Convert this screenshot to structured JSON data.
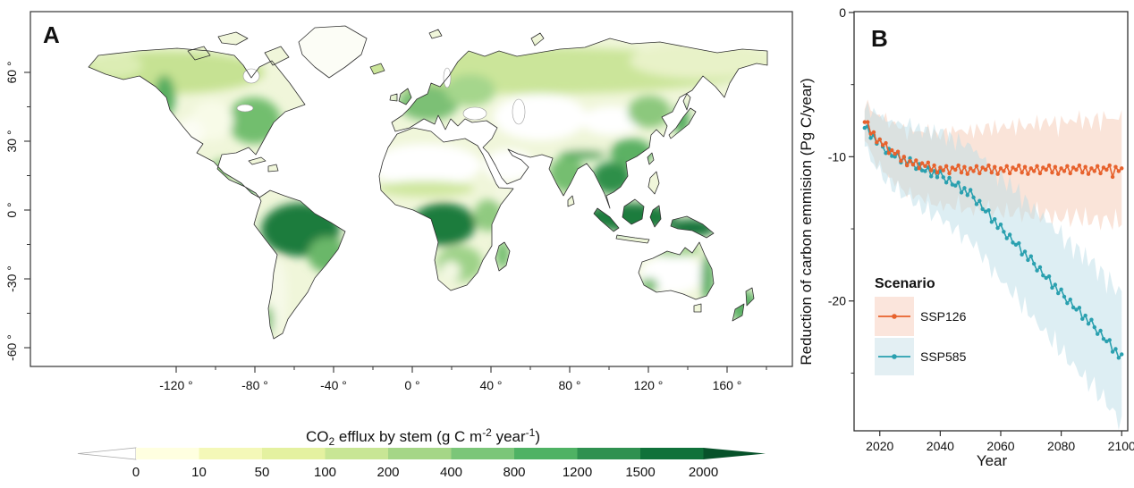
{
  "panels": {
    "a_label": "A",
    "b_label": "B"
  },
  "map": {
    "x_ticks": [
      {
        "lon": -120,
        "label": "-120 °"
      },
      {
        "lon": -80,
        "label": "-80 °"
      },
      {
        "lon": -40,
        "label": "-40 °"
      },
      {
        "lon": 0,
        "label": "0 °"
      },
      {
        "lon": 40,
        "label": "40 °"
      },
      {
        "lon": 80,
        "label": "80 °"
      },
      {
        "lon": 120,
        "label": "120 °"
      },
      {
        "lon": 160,
        "label": "160 °"
      }
    ],
    "x_minor_lons": [
      -100,
      -60,
      -20,
      20,
      60,
      100,
      140,
      180
    ],
    "y_ticks": [
      {
        "lat": 60,
        "label": "60 °"
      },
      {
        "lat": 30,
        "label": "30 °"
      },
      {
        "lat": 0,
        "label": "0 °"
      },
      {
        "lat": -30,
        "label": "-30 °"
      },
      {
        "lat": -60,
        "label": "-60 °"
      }
    ],
    "y_minor_lats": [
      45,
      15,
      -15,
      -45
    ]
  },
  "colorbar": {
    "title_parts": {
      "t1": "CO",
      "sub": "2",
      "t2": " efflux by stem (g C m",
      "sup1": "-2",
      "t3": " year",
      "sup2": "-1",
      "t4": ")"
    },
    "tick_labels": [
      "0",
      "10",
      "50",
      "100",
      "200",
      "400",
      "800",
      "1200",
      "1500",
      "2000"
    ],
    "segment_colors": [
      "#ffffe0",
      "#f4f8b8",
      "#e4f1a0",
      "#c8e695",
      "#a5d687",
      "#7bc679",
      "#4fb264",
      "#2f9150",
      "#10713a"
    ],
    "left_arrow_color": "#ffffff",
    "right_arrow_color": "#07522a"
  },
  "chart_data": {
    "type": "line",
    "title": "",
    "xlabel": "Year",
    "ylabel": "Reduction of carbon emmision (Pg C/year)",
    "x_ticks": [
      2020,
      2040,
      2060,
      2080,
      2100
    ],
    "y_ticks": [
      0,
      -10,
      -20
    ],
    "y_minor_ticks": [
      -5,
      -15,
      -25
    ],
    "xlim": [
      2011.5,
      2102
    ],
    "ylim": [
      -29,
      0.06
    ],
    "grid": false,
    "legend": {
      "title": "Scenario",
      "position": "inside-left-bottom"
    },
    "years_start": 2015,
    "years_end": 2100,
    "series": [
      {
        "name": "SSP126",
        "color": "#e7622d",
        "band_color": "#f6c9b4",
        "band_swatch": "#fbe5dc",
        "band_halfwidth_start": 1.1,
        "band_halfwidth_end": 3.4,
        "values": [
          -7.6,
          -7.6,
          -8.4,
          -8.3,
          -9.0,
          -8.8,
          -9.2,
          -9.05,
          -9.75,
          -9.55,
          -9.8,
          -9.65,
          -10.3,
          -10.0,
          -10.6,
          -10.3,
          -10.55,
          -10.25,
          -10.8,
          -10.45,
          -10.65,
          -10.4,
          -10.95,
          -10.6,
          -11.1,
          -10.75,
          -10.95,
          -10.65,
          -11.15,
          -10.75,
          -10.9,
          -10.6,
          -11.1,
          -10.7,
          -11.2,
          -10.8,
          -11.0,
          -10.65,
          -11.15,
          -10.75,
          -10.9,
          -10.6,
          -11.1,
          -10.7,
          -11.2,
          -10.8,
          -11.0,
          -10.65,
          -11.15,
          -10.75,
          -10.9,
          -10.6,
          -11.1,
          -10.7,
          -11.2,
          -10.8,
          -11.0,
          -10.65,
          -11.15,
          -10.75,
          -10.9,
          -10.6,
          -11.1,
          -10.7,
          -11.2,
          -10.8,
          -11.0,
          -10.65,
          -11.15,
          -10.75,
          -10.9,
          -10.6,
          -11.1,
          -10.7,
          -11.2,
          -10.8,
          -11.0,
          -10.65,
          -11.15,
          -10.75,
          -10.9,
          -10.6,
          -11.4,
          -10.7,
          -11.0,
          -10.8
        ]
      },
      {
        "name": "SSP585",
        "color": "#2aa0af",
        "band_color": "#bcdde7",
        "band_swatch": "#e3eff3",
        "band_halfwidth_start": 1.1,
        "band_halfwidth_end": 4.2,
        "values": [
          -8.0,
          -7.9,
          -8.7,
          -8.5,
          -9.1,
          -8.8,
          -9.3,
          -9.75,
          -9.45,
          -9.95,
          -10.0,
          -9.75,
          -10.4,
          -10.05,
          -10.5,
          -10.1,
          -10.5,
          -10.85,
          -10.5,
          -10.95,
          -11.0,
          -10.73,
          -11.36,
          -10.99,
          -11.42,
          -11.0,
          -11.42,
          -11.79,
          -11.46,
          -11.93,
          -12.0,
          -11.79,
          -12.48,
          -12.17,
          -12.66,
          -12.3,
          -12.82,
          -13.29,
          -13.06,
          -13.63,
          -13.8,
          -13.71,
          -14.52,
          -14.33,
          -14.94,
          -14.7,
          -15.2,
          -15.65,
          -15.4,
          -15.95,
          -16.1,
          -15.99,
          -16.78,
          -16.57,
          -17.16,
          -16.9,
          -17.42,
          -17.89,
          -17.66,
          -18.23,
          -18.4,
          -18.29,
          -19.08,
          -18.87,
          -19.46,
          -19.2,
          -19.7,
          -20.15,
          -19.9,
          -20.45,
          -20.6,
          -20.47,
          -21.24,
          -21.01,
          -21.58,
          -21.3,
          -21.82,
          -22.29,
          -22.06,
          -22.63,
          -22.8,
          -22.71,
          -23.52,
          -23.33,
          -23.94,
          -23.7
        ]
      }
    ]
  }
}
